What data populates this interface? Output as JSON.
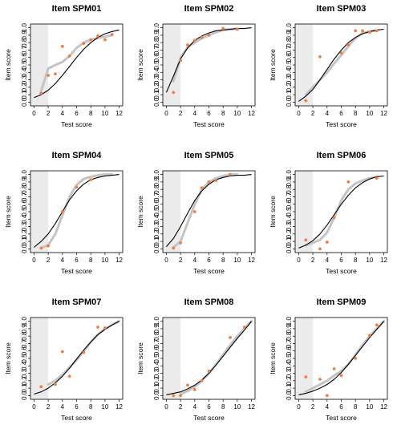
{
  "chart_data": [
    {
      "type": "scatter",
      "title": "Item SPM01",
      "xlabel": "Test score",
      "ylabel": "Item score",
      "xlim": [
        -0.5,
        12.5
      ],
      "ylim": [
        -0.05,
        1.05
      ],
      "x_ticks": [
        0,
        2,
        4,
        6,
        8,
        10,
        12
      ],
      "y_ticks": [
        0,
        0.1,
        0.2,
        0.3,
        0.4,
        0.5,
        0.6,
        0.7,
        0.8,
        0.9,
        1
      ],
      "x_tick_labels": [
        "0",
        "2",
        "4",
        "6",
        "8",
        "10",
        "12"
      ],
      "y_tick_labels": [
        "0.0",
        "0.1",
        "0.2",
        "0.3",
        "0.4",
        "0.5",
        "0.6",
        "0.7",
        "0.8",
        "0.9",
        "1.0"
      ],
      "shaded_band": [
        -0.5,
        2
      ],
      "points": {
        "x": [
          1,
          2,
          3,
          4,
          5,
          7,
          8,
          9,
          10,
          11
        ],
        "y": [
          0.12,
          0.36,
          0.38,
          0.75,
          0.62,
          0.79,
          0.84,
          0.89,
          0.84,
          0.91
        ]
      },
      "model_curve": {
        "x": [
          0,
          1,
          2,
          3,
          4,
          5,
          6,
          7,
          8,
          9,
          10,
          11,
          12
        ],
        "y": [
          0.06,
          0.1,
          0.16,
          0.25,
          0.36,
          0.48,
          0.6,
          0.71,
          0.8,
          0.87,
          0.92,
          0.95,
          0.97
        ]
      },
      "empirical_curve": {
        "x": [
          1,
          2,
          3,
          4,
          5,
          6,
          7,
          8,
          9,
          10,
          11
        ],
        "y": [
          0.15,
          0.45,
          0.5,
          0.54,
          0.62,
          0.73,
          0.8,
          0.84,
          0.86,
          0.88,
          0.9
        ]
      }
    },
    {
      "type": "scatter",
      "title": "Item SPM02",
      "xlabel": "Test score",
      "ylabel": "Item score",
      "xlim": [
        -0.5,
        12.5
      ],
      "ylim": [
        -0.05,
        1.05
      ],
      "x_ticks": [
        0,
        2,
        4,
        6,
        8,
        10,
        12
      ],
      "y_ticks": [
        0,
        0.1,
        0.2,
        0.3,
        0.4,
        0.5,
        0.6,
        0.7,
        0.8,
        0.9,
        1
      ],
      "x_tick_labels": [
        "0",
        "2",
        "4",
        "6",
        "8",
        "10",
        "12"
      ],
      "y_tick_labels": [
        "0.0",
        "0.1",
        "0.2",
        "0.3",
        "0.4",
        "0.5",
        "0.6",
        "0.7",
        "0.8",
        "0.9",
        "1.0"
      ],
      "shaded_band": [
        -0.5,
        2
      ],
      "points": {
        "x": [
          1,
          2,
          3,
          4,
          5,
          6,
          8,
          10
        ],
        "y": [
          0.13,
          0.56,
          0.77,
          0.83,
          0.87,
          0.9,
          0.99,
          0.98
        ]
      },
      "model_curve": {
        "x": [
          0,
          1,
          2,
          3,
          4,
          5,
          6,
          7,
          8,
          9,
          10,
          11,
          12
        ],
        "y": [
          0.13,
          0.35,
          0.58,
          0.73,
          0.83,
          0.89,
          0.93,
          0.96,
          0.97,
          0.98,
          0.99,
          0.99,
          1.0
        ]
      },
      "empirical_curve": {
        "x": [
          1,
          2,
          3,
          4,
          5,
          6,
          7,
          8,
          9,
          10
        ],
        "y": [
          0.28,
          0.6,
          0.74,
          0.8,
          0.86,
          0.9,
          0.94,
          0.97,
          0.98,
          0.99
        ]
      }
    },
    {
      "type": "scatter",
      "title": "Item SPM03",
      "xlabel": "Test score",
      "ylabel": "Item score",
      "xlim": [
        -0.5,
        12.5
      ],
      "ylim": [
        -0.05,
        1.05
      ],
      "x_ticks": [
        0,
        2,
        4,
        6,
        8,
        10,
        12
      ],
      "y_ticks": [
        0,
        0.1,
        0.2,
        0.3,
        0.4,
        0.5,
        0.6,
        0.7,
        0.8,
        0.9,
        1
      ],
      "x_tick_labels": [
        "0",
        "2",
        "4",
        "6",
        "8",
        "10",
        "12"
      ],
      "y_tick_labels": [
        "0.0",
        "0.1",
        "0.2",
        "0.3",
        "0.4",
        "0.5",
        "0.6",
        "0.7",
        "0.8",
        "0.9",
        "1.0"
      ],
      "shaded_band": [
        -0.5,
        2
      ],
      "points": {
        "x": [
          1,
          3,
          6,
          7,
          8,
          9,
          10,
          11
        ],
        "y": [
          0.02,
          0.61,
          0.66,
          0.77,
          0.96,
          0.96,
          0.94,
          0.96
        ]
      },
      "model_curve": {
        "x": [
          0,
          1,
          2,
          3,
          4,
          5,
          6,
          7,
          8,
          9,
          10,
          11,
          12
        ],
        "y": [
          0.01,
          0.08,
          0.17,
          0.3,
          0.44,
          0.58,
          0.7,
          0.8,
          0.87,
          0.92,
          0.95,
          0.97,
          0.98
        ]
      },
      "empirical_curve": {
        "x": [
          1,
          2,
          3,
          4,
          5,
          6,
          7,
          8,
          9,
          10,
          11
        ],
        "y": [
          0.1,
          0.2,
          0.3,
          0.4,
          0.52,
          0.63,
          0.75,
          0.86,
          0.93,
          0.95,
          0.96
        ]
      }
    },
    {
      "type": "scatter",
      "title": "Item SPM04",
      "xlabel": "Test score",
      "ylabel": "Item score",
      "xlim": [
        -0.5,
        12.5
      ],
      "ylim": [
        -0.05,
        1.05
      ],
      "x_ticks": [
        0,
        2,
        4,
        6,
        8,
        10,
        12
      ],
      "y_ticks": [
        0,
        0.1,
        0.2,
        0.3,
        0.4,
        0.5,
        0.6,
        0.7,
        0.8,
        0.9,
        1
      ],
      "x_tick_labels": [
        "0",
        "2",
        "4",
        "6",
        "8",
        "10",
        "12"
      ],
      "y_tick_labels": [
        "0.0",
        "0.1",
        "0.2",
        "0.3",
        "0.4",
        "0.5",
        "0.6",
        "0.7",
        "0.8",
        "0.9",
        "1.0"
      ],
      "shaded_band": [
        -0.5,
        2
      ],
      "points": {
        "x": [
          1,
          2,
          4,
          6,
          8
        ],
        "y": [
          0.01,
          0.04,
          0.5,
          0.83,
          0.93
        ]
      },
      "model_curve": {
        "x": [
          0,
          1,
          2,
          3,
          4,
          5,
          6,
          7,
          8,
          9,
          10,
          11,
          12
        ],
        "y": [
          0.02,
          0.1,
          0.2,
          0.34,
          0.5,
          0.66,
          0.78,
          0.87,
          0.93,
          0.96,
          0.98,
          0.99,
          1.0
        ]
      },
      "empirical_curve": {
        "x": [
          1,
          2,
          3,
          4,
          5,
          6,
          7,
          8,
          9,
          10,
          11
        ],
        "y": [
          0.01,
          0.05,
          0.2,
          0.45,
          0.7,
          0.86,
          0.94,
          0.97,
          0.99,
          1.0,
          1.0
        ]
      }
    },
    {
      "type": "scatter",
      "title": "Item SPM05",
      "xlabel": "Test score",
      "ylabel": "Item score",
      "xlim": [
        -0.5,
        12.5
      ],
      "ylim": [
        -0.05,
        1.05
      ],
      "x_ticks": [
        0,
        2,
        4,
        6,
        8,
        10,
        12
      ],
      "y_ticks": [
        0,
        0.1,
        0.2,
        0.3,
        0.4,
        0.5,
        0.6,
        0.7,
        0.8,
        0.9,
        1
      ],
      "x_tick_labels": [
        "0",
        "2",
        "4",
        "6",
        "8",
        "10",
        "12"
      ],
      "y_tick_labels": [
        "0.0",
        "0.1",
        "0.2",
        "0.3",
        "0.4",
        "0.5",
        "0.6",
        "0.7",
        "0.8",
        "0.9",
        "1.0"
      ],
      "shaded_band": [
        -0.5,
        2
      ],
      "points": {
        "x": [
          1,
          2,
          4,
          5,
          6,
          7,
          9
        ],
        "y": [
          0.01,
          0.08,
          0.5,
          0.82,
          0.9,
          0.92,
          1.0
        ]
      },
      "model_curve": {
        "x": [
          0,
          1,
          2,
          3,
          4,
          5,
          6,
          7,
          8,
          9,
          10,
          11,
          12
        ],
        "y": [
          0.03,
          0.14,
          0.3,
          0.48,
          0.65,
          0.78,
          0.87,
          0.93,
          0.96,
          0.98,
          0.99,
          0.99,
          1.0
        ]
      },
      "empirical_curve": {
        "x": [
          1,
          2,
          3,
          4,
          5,
          6,
          7,
          8,
          9,
          10
        ],
        "y": [
          0.02,
          0.1,
          0.35,
          0.6,
          0.8,
          0.9,
          0.95,
          0.98,
          1.0,
          1.0
        ]
      }
    },
    {
      "type": "scatter",
      "title": "Item SPM06",
      "xlabel": "Test score",
      "ylabel": "Item score",
      "xlim": [
        -0.5,
        12.5
      ],
      "ylim": [
        -0.05,
        1.05
      ],
      "x_ticks": [
        0,
        2,
        4,
        6,
        8,
        10,
        12
      ],
      "y_ticks": [
        0,
        0.1,
        0.2,
        0.3,
        0.4,
        0.5,
        0.6,
        0.7,
        0.8,
        0.9,
        1
      ],
      "x_tick_labels": [
        "0",
        "2",
        "4",
        "6",
        "8",
        "10",
        "12"
      ],
      "y_tick_labels": [
        "0.0",
        "0.1",
        "0.2",
        "0.3",
        "0.4",
        "0.5",
        "0.6",
        "0.7",
        "0.8",
        "0.9",
        "1.0"
      ],
      "shaded_band": [
        -0.5,
        2
      ],
      "points": {
        "x": [
          1,
          3,
          4,
          5,
          7,
          11
        ],
        "y": [
          0.12,
          0.0,
          0.09,
          0.42,
          0.9,
          0.95
        ]
      },
      "model_curve": {
        "x": [
          0,
          1,
          2,
          3,
          4,
          5,
          6,
          7,
          8,
          9,
          10,
          11,
          12
        ],
        "y": [
          0.01,
          0.05,
          0.11,
          0.2,
          0.32,
          0.46,
          0.6,
          0.72,
          0.82,
          0.89,
          0.94,
          0.97,
          0.98
        ]
      },
      "empirical_curve": {
        "x": [
          1,
          2,
          3,
          4,
          5,
          6,
          7,
          8,
          9,
          10,
          11
        ],
        "y": [
          0.05,
          0.08,
          0.12,
          0.22,
          0.42,
          0.65,
          0.8,
          0.88,
          0.92,
          0.95,
          0.97
        ]
      }
    },
    {
      "type": "scatter",
      "title": "Item SPM07",
      "xlabel": "Test score",
      "ylabel": "Item score",
      "xlim": [
        -0.5,
        12.5
      ],
      "ylim": [
        -0.05,
        1.05
      ],
      "x_ticks": [
        0,
        2,
        4,
        6,
        8,
        10,
        12
      ],
      "y_ticks": [
        0,
        0.1,
        0.2,
        0.3,
        0.4,
        0.5,
        0.6,
        0.7,
        0.8,
        0.9,
        1
      ],
      "x_tick_labels": [
        "0",
        "2",
        "4",
        "6",
        "8",
        "10",
        "12"
      ],
      "y_tick_labels": [
        "0.0",
        "0.1",
        "0.2",
        "0.3",
        "0.4",
        "0.5",
        "0.6",
        "0.7",
        "0.8",
        "0.9",
        "1.0"
      ],
      "shaded_band": [
        -0.5,
        2
      ],
      "points": {
        "x": [
          1,
          3,
          4,
          5,
          7,
          9,
          10
        ],
        "y": [
          0.12,
          0.15,
          0.59,
          0.26,
          0.58,
          0.92,
          0.91
        ]
      },
      "model_curve": {
        "x": [
          0,
          1,
          2,
          3,
          4,
          5,
          6,
          7,
          8,
          9,
          10,
          11,
          12
        ],
        "y": [
          0.02,
          0.05,
          0.1,
          0.17,
          0.26,
          0.37,
          0.49,
          0.61,
          0.72,
          0.82,
          0.89,
          0.95,
          1.0
        ]
      },
      "empirical_curve": {
        "x": [
          2,
          3,
          4,
          5,
          6,
          7,
          8,
          9,
          10,
          11,
          12
        ],
        "y": [
          0.15,
          0.2,
          0.28,
          0.38,
          0.48,
          0.6,
          0.72,
          0.82,
          0.9,
          0.95,
          1.0
        ]
      }
    },
    {
      "type": "scatter",
      "title": "Item SPM08",
      "xlabel": "Test score",
      "ylabel": "Item score",
      "xlim": [
        -0.5,
        12.5
      ],
      "ylim": [
        -0.05,
        1.05
      ],
      "x_ticks": [
        0,
        2,
        4,
        6,
        8,
        10,
        12
      ],
      "y_ticks": [
        0,
        0.1,
        0.2,
        0.3,
        0.4,
        0.5,
        0.6,
        0.7,
        0.8,
        0.9,
        1
      ],
      "x_tick_labels": [
        "0",
        "2",
        "4",
        "6",
        "8",
        "10",
        "12"
      ],
      "y_tick_labels": [
        "0.0",
        "0.1",
        "0.2",
        "0.3",
        "0.4",
        "0.5",
        "0.6",
        "0.7",
        "0.8",
        "0.9",
        "1.0"
      ],
      "shaded_band": [
        -0.5,
        2
      ],
      "points": {
        "x": [
          1,
          2,
          3,
          4,
          5,
          6,
          9,
          11
        ],
        "y": [
          0.0,
          0.0,
          0.14,
          0.08,
          0.2,
          0.33,
          0.78,
          0.92
        ]
      },
      "model_curve": {
        "x": [
          0,
          1,
          2,
          3,
          4,
          5,
          6,
          7,
          8,
          9,
          10,
          11,
          12
        ],
        "y": [
          0.01,
          0.03,
          0.05,
          0.09,
          0.14,
          0.21,
          0.3,
          0.41,
          0.53,
          0.65,
          0.77,
          0.88,
          1.0
        ]
      },
      "empirical_curve": {
        "x": [
          2,
          3,
          4,
          5,
          6,
          7,
          8,
          9,
          10,
          11,
          12
        ],
        "y": [
          0.02,
          0.06,
          0.12,
          0.2,
          0.3,
          0.42,
          0.55,
          0.68,
          0.8,
          0.9,
          1.0
        ]
      }
    },
    {
      "type": "scatter",
      "title": "Item SPM09",
      "xlabel": "Test score",
      "ylabel": "Item score",
      "xlim": [
        -0.5,
        12.5
      ],
      "ylim": [
        -0.05,
        1.05
      ],
      "x_ticks": [
        0,
        2,
        4,
        6,
        8,
        10,
        12
      ],
      "y_ticks": [
        0,
        0.1,
        0.2,
        0.3,
        0.4,
        0.5,
        0.6,
        0.7,
        0.8,
        0.9,
        1
      ],
      "x_tick_labels": [
        "0",
        "2",
        "4",
        "6",
        "8",
        "10",
        "12"
      ],
      "y_tick_labels": [
        "0.0",
        "0.1",
        "0.2",
        "0.3",
        "0.4",
        "0.5",
        "0.6",
        "0.7",
        "0.8",
        "0.9",
        "1.0"
      ],
      "shaded_band": [
        -0.5,
        2
      ],
      "points": {
        "x": [
          1,
          3,
          4,
          5,
          6,
          8,
          10,
          11
        ],
        "y": [
          0.25,
          0.22,
          0.0,
          0.36,
          0.27,
          0.5,
          0.81,
          0.95
        ]
      },
      "model_curve": {
        "x": [
          0,
          1,
          2,
          3,
          4,
          5,
          6,
          7,
          8,
          9,
          10,
          11,
          12
        ],
        "y": [
          0.01,
          0.03,
          0.06,
          0.1,
          0.15,
          0.22,
          0.31,
          0.42,
          0.54,
          0.66,
          0.78,
          0.89,
          1.0
        ]
      },
      "empirical_curve": {
        "x": [
          1,
          2,
          3,
          4,
          5,
          6,
          7,
          8,
          9,
          10,
          11,
          12
        ],
        "y": [
          0.05,
          0.1,
          0.15,
          0.2,
          0.27,
          0.33,
          0.42,
          0.55,
          0.68,
          0.8,
          0.9,
          1.0
        ]
      }
    }
  ],
  "style": {
    "point_color": "#f08040",
    "model_curve_color": "#000000",
    "empirical_curve_color": "#c4c4c4",
    "shade_color": "#ebebeb"
  }
}
